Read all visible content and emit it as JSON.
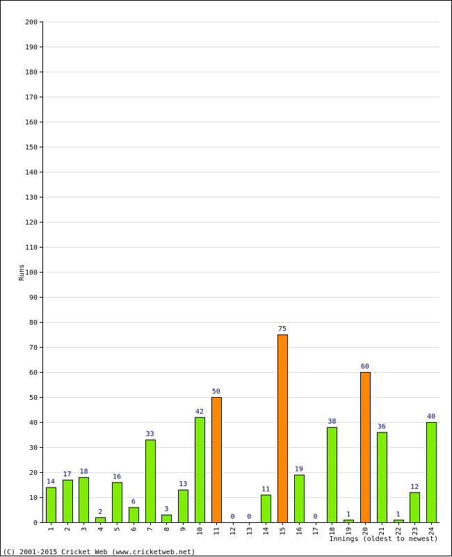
{
  "chart_data": {
    "type": "bar",
    "categories": [
      "1",
      "2",
      "3",
      "4",
      "5",
      "6",
      "7",
      "8",
      "9",
      "10",
      "11",
      "12",
      "13",
      "14",
      "15",
      "16",
      "17",
      "18",
      "19",
      "20",
      "21",
      "22",
      "23",
      "24"
    ],
    "values": [
      14,
      17,
      18,
      2,
      16,
      6,
      33,
      3,
      13,
      42,
      50,
      0,
      0,
      11,
      75,
      19,
      0,
      38,
      1,
      60,
      36,
      1,
      12,
      40
    ],
    "highlight": [
      false,
      false,
      false,
      false,
      false,
      false,
      false,
      false,
      false,
      false,
      true,
      false,
      false,
      false,
      true,
      false,
      false,
      false,
      false,
      true,
      false,
      false,
      false,
      false
    ],
    "ylabel": "Runs",
    "xlabel": "Innings (oldest to newest)",
    "ylim": [
      0,
      200
    ],
    "ytick_step": 10,
    "grid": true,
    "colors": {
      "normal": "#80ee00",
      "highlight": "#ff8800",
      "label": "#000080"
    }
  },
  "footer": "(C) 2001-2015 Cricket Web (www.cricketweb.net)"
}
